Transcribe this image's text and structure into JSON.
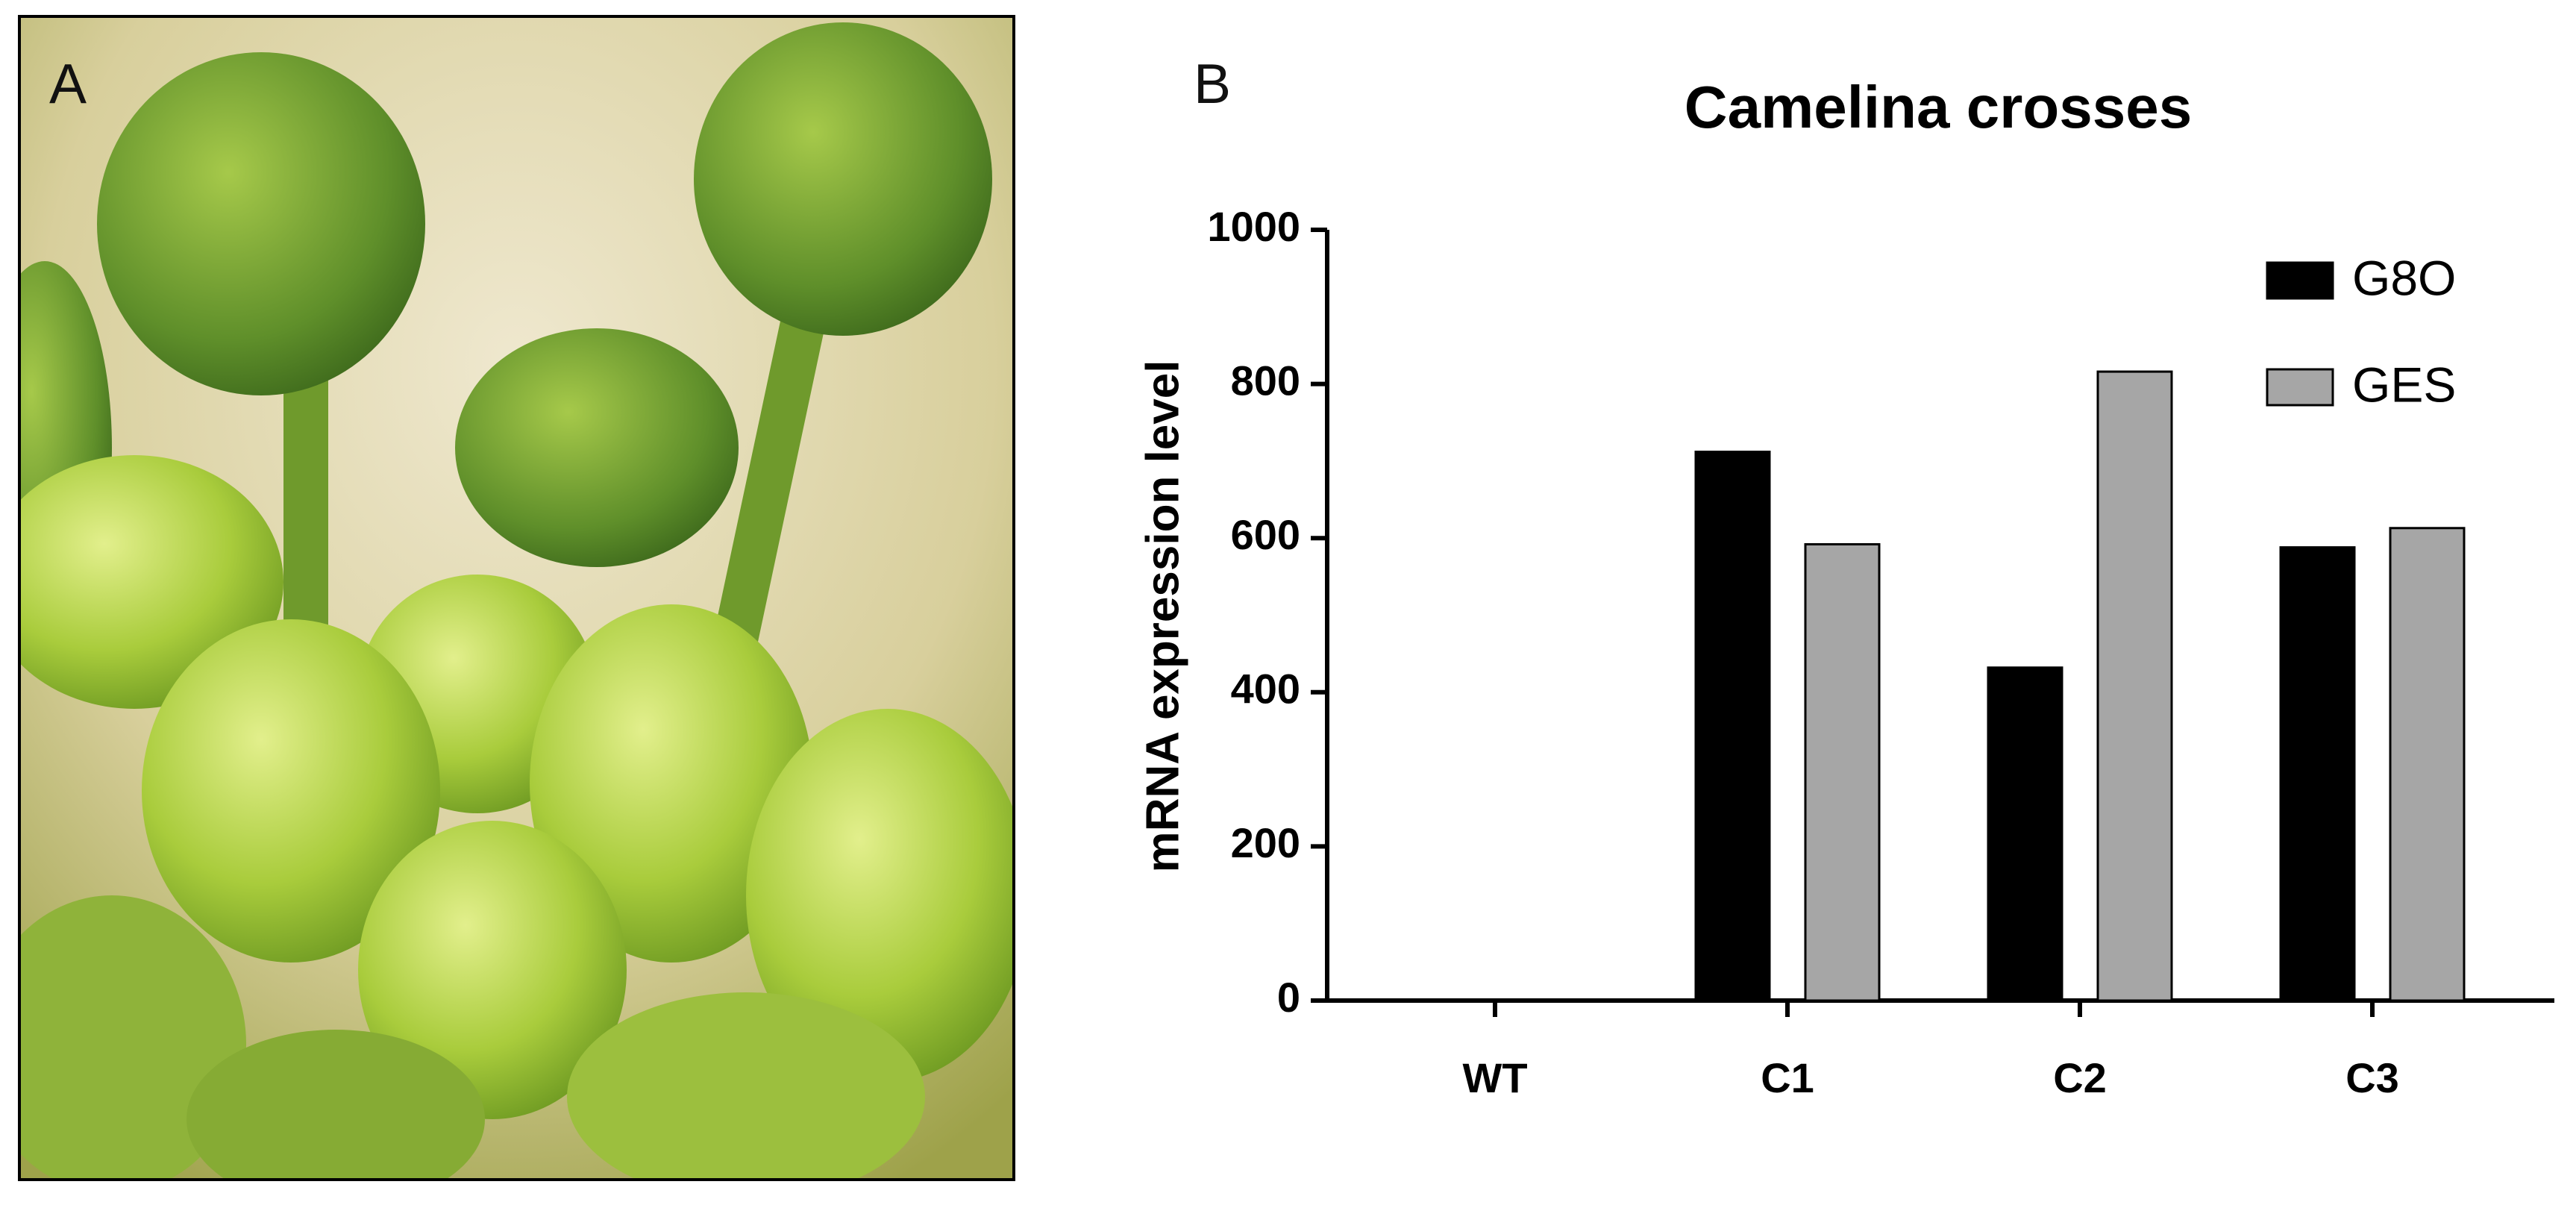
{
  "panel_labels": [
    "A",
    "B"
  ],
  "chart_data": {
    "type": "bar",
    "title": "Camelina crosses",
    "y_label": "mRNA expression level",
    "categories": [
      "WT",
      "C1",
      "C2",
      "C3"
    ],
    "series": [
      {
        "name": "G8O",
        "color": "#000000",
        "values": [
          0,
          712,
          432,
          588
        ]
      },
      {
        "name": "GES",
        "color": "#a6a6a6",
        "values": [
          0,
          592,
          816,
          613
        ]
      }
    ],
    "ylim": [
      0,
      1000
    ],
    "yticks": [
      0,
      200,
      400,
      600,
      800,
      1000
    ],
    "legend": "top-right"
  }
}
